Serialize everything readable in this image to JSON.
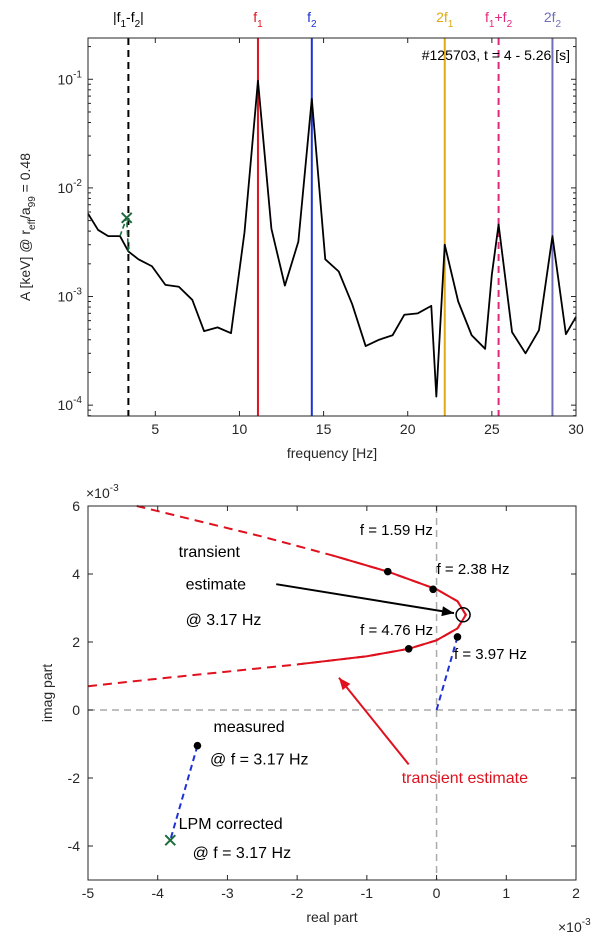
{
  "chart_data": [
    {
      "type": "line",
      "yscale": "log",
      "title": "",
      "xlabel": "frequency [Hz]",
      "ylabel": {
        "main": "A [keV] @ r",
        "sub1": "eff",
        "mid": "/a",
        "sub2": "99",
        "tail": " = 0.48"
      },
      "annotation": "#125703, t = 4 - 5.26 [s]",
      "xlim": [
        1,
        30
      ],
      "ylim_exp": [
        -4.1,
        -0.62
      ],
      "xticks": [
        5,
        10,
        15,
        20,
        25,
        30
      ],
      "xtick_labels": [
        "5",
        "10",
        "15",
        "20",
        "25",
        "30"
      ],
      "yticks_exp": [
        -4,
        -3,
        -2,
        -1
      ],
      "ytick_base": "10",
      "ytick_exps": [
        "-4",
        "-3",
        "-2",
        "-1"
      ],
      "grid": false,
      "series": [
        {
          "color": "#000000",
          "x": [
            1.0,
            1.6,
            2.2,
            2.9,
            3.4,
            4.0,
            4.8,
            5.6,
            6.4,
            7.2,
            7.9,
            8.7,
            9.5,
            10.3,
            11.1,
            11.9,
            12.7,
            13.5,
            14.3,
            15.1,
            15.9,
            16.7,
            17.5,
            18.3,
            19.1,
            19.8,
            20.6,
            21.4,
            21.7,
            22.2,
            23.0,
            23.8,
            24.6,
            25.0,
            25.4,
            26.2,
            27.0,
            27.8,
            28.6,
            29.4,
            30.0
          ],
          "y": [
            0.0058,
            0.0041,
            0.0036,
            0.0036,
            0.0026,
            0.0022,
            0.0019,
            0.00128,
            0.00123,
            0.00093,
            0.00048,
            0.00052,
            0.00046,
            0.0039,
            0.097,
            0.0042,
            0.00126,
            0.0032,
            0.066,
            0.0022,
            0.0017,
            0.00085,
            0.00035,
            0.0004,
            0.00044,
            0.00068,
            0.0007,
            0.00082,
            0.00012,
            0.003,
            0.0009,
            0.00044,
            0.00033,
            0.0016,
            0.0046,
            0.00047,
            0.0003,
            0.00049,
            0.0036,
            0.00045,
            0.00065
          ]
        },
        {
          "color": "#1a6b3a",
          "x": [
            2.9,
            3.3,
            3.4
          ],
          "y": [
            0.0036,
            0.0053,
            0.0026
          ]
        }
      ],
      "marker": {
        "x": 3.3,
        "y": 0.0053,
        "color": "#1a6b3a"
      },
      "vlines": [
        {
          "x": 3.4,
          "color": "#000000",
          "dashed": true,
          "label": "|f",
          "sub1": "1",
          "mid": "-f",
          "sub2": "2",
          "tail": "|"
        },
        {
          "x": 11.1,
          "color": "#e0111e",
          "dashed": false,
          "label": "f",
          "sub1": "1",
          "mid": "",
          "sub2": "",
          "tail": ""
        },
        {
          "x": 14.3,
          "color": "#1d31d6",
          "dashed": false,
          "label": "f",
          "sub1": "2",
          "mid": "",
          "sub2": "",
          "tail": ""
        },
        {
          "x": 22.2,
          "color": "#e0aa10",
          "dashed": false,
          "label": "2f",
          "sub1": "1",
          "mid": "",
          "sub2": "",
          "tail": ""
        },
        {
          "x": 25.4,
          "color": "#e0287e",
          "dashed": true,
          "label": "f",
          "sub1": "1",
          "mid": "+f",
          "sub2": "2",
          "tail": ""
        },
        {
          "x": 28.6,
          "color": "#7070b8",
          "dashed": false,
          "label": "2f",
          "sub1": "2",
          "mid": "",
          "sub2": "",
          "tail": ""
        }
      ]
    },
    {
      "type": "line",
      "title": "",
      "xlabel": "real part",
      "ylabel": "imag part",
      "xlim": [
        -5,
        2
      ],
      "ylim": [
        -5,
        6
      ],
      "xticks": [
        -5,
        -4,
        -3,
        -2,
        -1,
        0,
        1,
        2
      ],
      "xtick_labels": [
        "-5",
        "-4",
        "-3",
        "-2",
        "-1",
        "0",
        "1",
        "2"
      ],
      "yticks": [
        -4,
        -2,
        0,
        2,
        4,
        6
      ],
      "ytick_labels": [
        "-4",
        "-2",
        "0",
        "2",
        "4",
        "6"
      ],
      "x_scale_label": {
        "base": "×10",
        "exp": "-3"
      },
      "y_scale_label": {
        "base": "×10",
        "exp": "-3"
      },
      "grid": false,
      "reference_lines": {
        "color": "#aaaaaa",
        "x0": 0,
        "y0": 0
      },
      "transient_estimate_curve": {
        "color": "#e0111e",
        "solid_y_range": [
          0.7,
          5.4
        ],
        "points": [
          {
            "x": -5.0,
            "y": 0.7
          },
          {
            "x": -4.0,
            "y": 0.92
          },
          {
            "x": -3.0,
            "y": 1.13
          },
          {
            "x": -2.0,
            "y": 1.34
          },
          {
            "x": -1.0,
            "y": 1.58
          },
          {
            "x": -0.4,
            "y": 1.8
          },
          {
            "x": 0.0,
            "y": 2.05
          },
          {
            "x": 0.3,
            "y": 2.4
          },
          {
            "x": 0.42,
            "y": 2.8
          },
          {
            "x": 0.3,
            "y": 3.2
          },
          {
            "x": 0.0,
            "y": 3.55
          },
          {
            "x": -0.7,
            "y": 4.07
          },
          {
            "x": -1.5,
            "y": 4.55
          },
          {
            "x": -2.5,
            "y": 5.1
          },
          {
            "x": -3.5,
            "y": 5.6
          },
          {
            "x": -4.3,
            "y": 6.0
          }
        ]
      },
      "frequency_points": [
        {
          "x": -0.7,
          "y": 4.07,
          "label": "f = 1.59 Hz",
          "anchor": "start",
          "lx": -1.1,
          "ly": 5.15
        },
        {
          "x": -0.05,
          "y": 3.55,
          "label": "f = 2.38 Hz",
          "anchor": "start",
          "lx": 0.0,
          "ly": 4.0
        },
        {
          "x": 0.3,
          "y": 2.15,
          "label": "f = 3.97 Hz",
          "anchor": "start",
          "lx": 0.25,
          "ly": 1.5
        },
        {
          "x": -0.4,
          "y": 1.8,
          "label": "f = 4.76 Hz",
          "anchor": "end",
          "lx": -0.05,
          "ly": 2.2
        }
      ],
      "estimate_point": {
        "x": 0.38,
        "y": 2.8
      },
      "estimate_annotation": {
        "lines": [
          "transient",
          "estimate",
          "@ 3.17 Hz"
        ],
        "lx": [
          -3.7,
          -3.6,
          -3.6
        ],
        "ly": [
          4.5,
          3.55,
          2.5
        ],
        "arrow_from": [
          -2.3,
          3.7
        ],
        "arrow_to": [
          0.25,
          2.85
        ]
      },
      "transient_label": {
        "text": "transient estimate",
        "lx": -0.5,
        "ly": -2.15,
        "arrow_from": [
          -0.4,
          -1.6
        ],
        "arrow_to": [
          -1.4,
          0.95
        ]
      },
      "measured": {
        "x": -3.43,
        "y": -1.05,
        "lines": [
          "measured",
          "@ f = 3.17 Hz"
        ],
        "lx": [
          -3.2,
          -3.25
        ],
        "ly": [
          -0.65,
          -1.6
        ]
      },
      "lpm_corrected": {
        "x": -3.82,
        "y": -3.83,
        "lines": [
          "LPM corrected",
          "@ f = 3.17 Hz"
        ],
        "lx": [
          -3.7,
          -3.5
        ],
        "ly": [
          -3.5,
          -4.35
        ]
      },
      "links": [
        {
          "from": [
            -3.43,
            -1.05
          ],
          "to": [
            -3.82,
            -3.83
          ],
          "color": "#1d31d6"
        },
        {
          "from": [
            0.0,
            0.0
          ],
          "to": [
            0.3,
            2.15
          ],
          "color": "#1d31d6"
        }
      ]
    }
  ]
}
